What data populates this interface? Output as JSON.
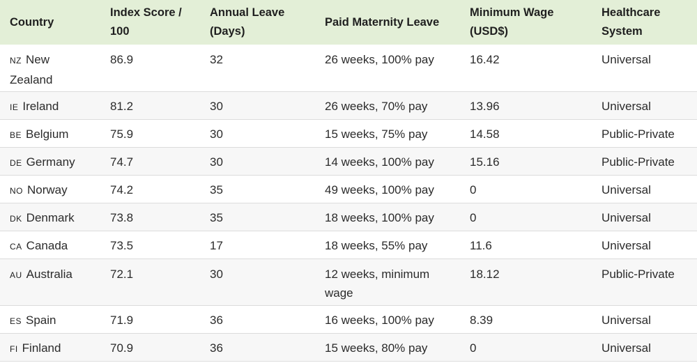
{
  "headers": [
    "Country",
    "Index Score / 100",
    "Annual Leave (Days)",
    "Paid Maternity Leave",
    "Minimum Wage (USD$)",
    "Healthcare System"
  ],
  "rows": [
    {
      "code": "NZ",
      "country": "New Zealand",
      "score": "86.9",
      "leave": "32",
      "maternity": "26 weeks, 100% pay",
      "wage": "16.42",
      "health": "Universal"
    },
    {
      "code": "IE",
      "country": "Ireland",
      "score": "81.2",
      "leave": "30",
      "maternity": "26 weeks, 70% pay",
      "wage": "13.96",
      "health": "Universal"
    },
    {
      "code": "BE",
      "country": "Belgium",
      "score": "75.9",
      "leave": "30",
      "maternity": "15 weeks, 75% pay",
      "wage": "14.58",
      "health": "Public-Private"
    },
    {
      "code": "DE",
      "country": "Germany",
      "score": "74.7",
      "leave": "30",
      "maternity": "14 weeks, 100% pay",
      "wage": "15.16",
      "health": "Public-Private"
    },
    {
      "code": "NO",
      "country": "Norway",
      "score": "74.2",
      "leave": "35",
      "maternity": "49 weeks, 100% pay",
      "wage": "0",
      "health": "Universal"
    },
    {
      "code": "DK",
      "country": "Denmark",
      "score": "73.8",
      "leave": "35",
      "maternity": "18 weeks, 100% pay",
      "wage": "0",
      "health": "Universal"
    },
    {
      "code": "CA",
      "country": "Canada",
      "score": "73.5",
      "leave": "17",
      "maternity": "18 weeks, 55% pay",
      "wage": "11.6",
      "health": "Universal"
    },
    {
      "code": "AU",
      "country": "Australia",
      "score": "72.1",
      "leave": "30",
      "maternity": "12 weeks, minimum wage",
      "wage": "18.12",
      "health": "Public-Private"
    },
    {
      "code": "ES",
      "country": "Spain",
      "score": "71.9",
      "leave": "36",
      "maternity": "16 weeks, 100% pay",
      "wage": "8.39",
      "health": "Universal"
    },
    {
      "code": "FI",
      "country": "Finland",
      "score": "70.9",
      "leave": "36",
      "maternity": "15 weeks, 80% pay",
      "wage": "0",
      "health": "Universal"
    }
  ]
}
